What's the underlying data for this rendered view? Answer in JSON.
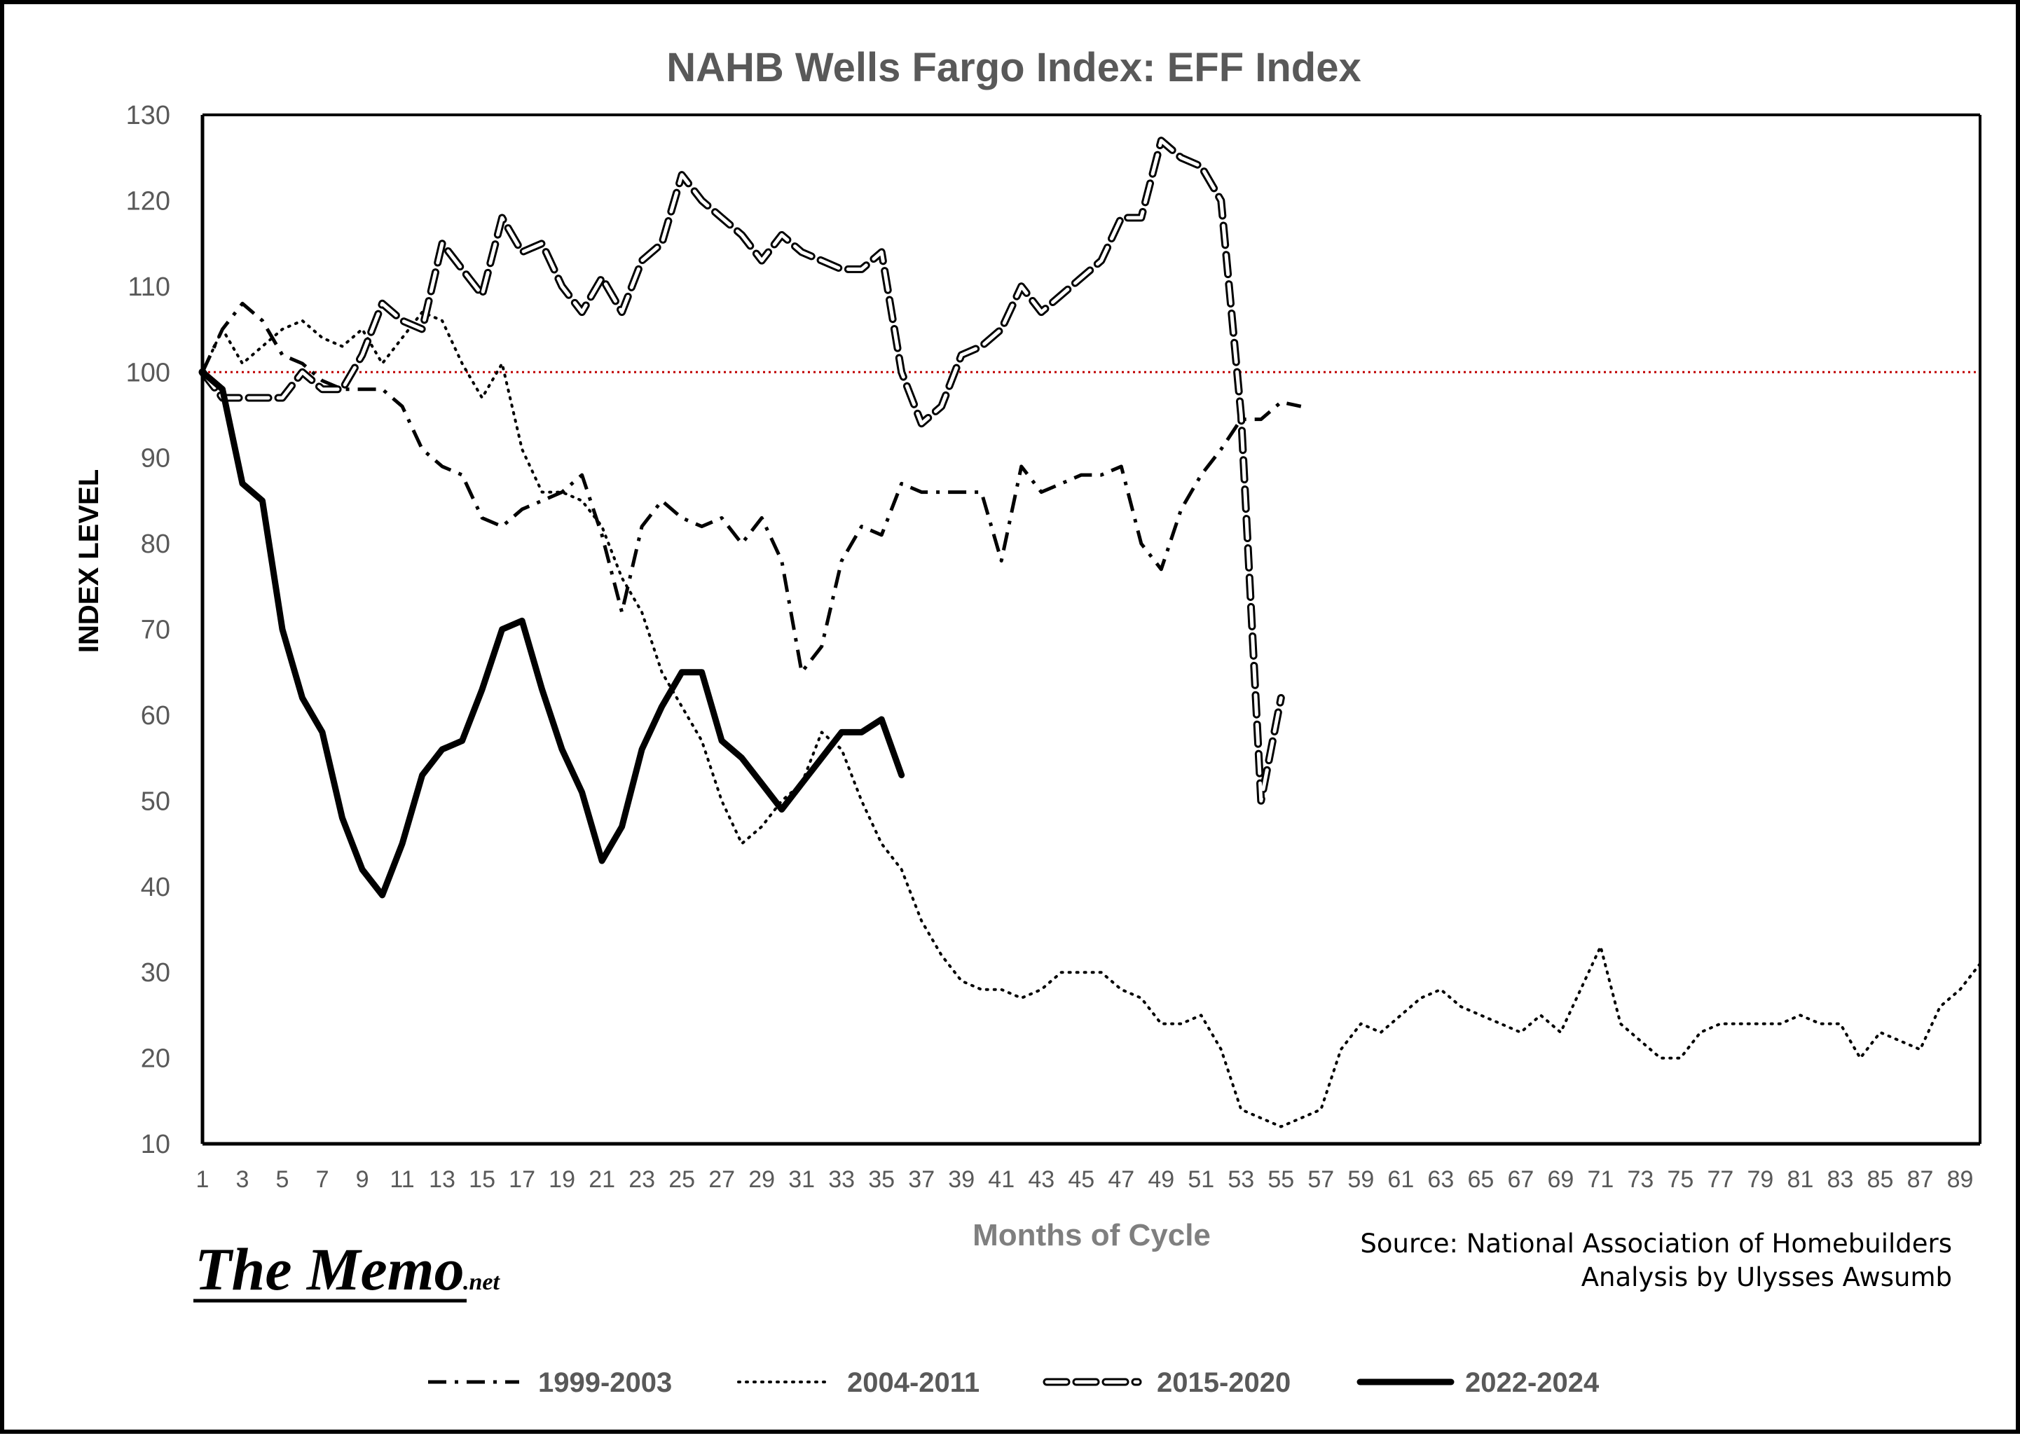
{
  "chart_data": {
    "type": "line",
    "title": "NAHB Wells Fargo Index:  EFF  Index",
    "xlabel": "Months of Cycle",
    "ylabel": "INDEX LEVEL",
    "xlim": [
      1,
      90
    ],
    "ylim": [
      10,
      130
    ],
    "yticks": [
      10,
      20,
      30,
      40,
      50,
      60,
      70,
      80,
      90,
      100,
      110,
      120,
      130
    ],
    "xticks": [
      1,
      3,
      5,
      7,
      9,
      11,
      13,
      15,
      17,
      19,
      21,
      23,
      25,
      27,
      29,
      31,
      33,
      35,
      37,
      39,
      41,
      43,
      45,
      47,
      49,
      51,
      53,
      55,
      57,
      59,
      61,
      63,
      65,
      67,
      69,
      71,
      73,
      75,
      77,
      79,
      81,
      83,
      85,
      87,
      89
    ],
    "reference_line": {
      "value": 100,
      "color": "#c00000"
    },
    "legend_position": "bottom",
    "series": [
      {
        "name": "1999-2003",
        "style": "dashdot",
        "color": "#000000",
        "values": [
          100,
          105,
          108,
          106,
          102,
          101,
          99,
          98,
          98,
          98,
          96,
          91,
          89,
          88,
          83,
          82,
          84,
          85,
          86,
          88,
          81,
          72,
          82,
          85,
          83,
          82,
          83,
          80,
          83,
          78,
          65,
          68,
          78,
          82,
          81,
          87,
          86,
          86,
          86,
          86,
          78,
          89,
          86,
          87,
          88,
          88,
          89,
          80,
          77,
          84,
          88,
          91,
          94.5,
          94.5,
          96.5,
          96
        ]
      },
      {
        "name": "2004-2011",
        "style": "dotted",
        "color": "#000000",
        "values": [
          100,
          105,
          101,
          103,
          105,
          106,
          104,
          103,
          105,
          101,
          104,
          107,
          106,
          101,
          97,
          101,
          91,
          86,
          86,
          85,
          82,
          76,
          72,
          65,
          61,
          57,
          50,
          45,
          47,
          50,
          52,
          58,
          56,
          50,
          45,
          42,
          36,
          32,
          29,
          28,
          28,
          27,
          28,
          30,
          30,
          30,
          28,
          27,
          24,
          24,
          25,
          21,
          14,
          13,
          12,
          13,
          14,
          21,
          24,
          23,
          25,
          27,
          28,
          26,
          25,
          24,
          23,
          25,
          23,
          28,
          33,
          24,
          22,
          20,
          20,
          23,
          24,
          24,
          24,
          24,
          25,
          24,
          24,
          20,
          23,
          22,
          21,
          26,
          28,
          31
        ]
      },
      {
        "name": "2015-2020",
        "style": "longdash",
        "color": "#000000",
        "values": [
          100,
          97,
          97,
          97,
          97,
          100,
          98,
          98,
          102,
          108,
          106,
          105,
          115,
          112,
          109,
          118,
          114,
          115,
          110,
          107,
          111,
          107,
          113,
          115,
          123,
          120,
          118,
          116,
          113,
          116,
          114,
          113,
          112,
          112,
          114,
          100,
          94,
          96,
          102,
          103,
          105,
          110,
          107,
          109,
          111,
          113,
          118,
          118,
          127,
          125,
          124,
          120,
          95,
          50,
          62
        ]
      },
      {
        "name": "2022-2024",
        "style": "solid",
        "color": "#000000",
        "values": [
          100,
          98,
          87,
          85,
          70,
          62,
          58,
          48,
          42,
          39,
          45,
          53,
          56,
          57,
          63,
          70,
          71,
          63,
          56,
          51,
          43,
          47,
          56,
          61,
          65,
          65,
          57,
          55,
          52,
          49,
          52,
          55,
          58,
          58,
          59.5,
          53
        ]
      }
    ]
  },
  "annotations": {
    "source_line1": "Source: National Association of Homebuilders",
    "source_line2": "Analysis by Ulysses Awsumb"
  },
  "logo": {
    "text": "The Memo",
    "suffix": ".net"
  }
}
